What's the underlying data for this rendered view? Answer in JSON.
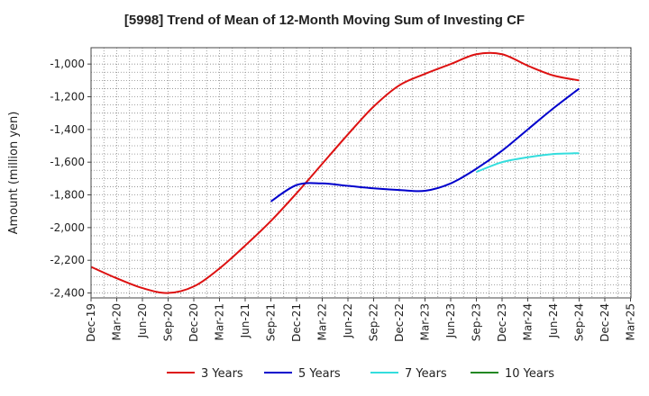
{
  "chart_data": {
    "type": "line",
    "title": "[5998]  Trend of Mean of 12-Month Moving Sum of Investing CF",
    "ylabel": "Amount (million yen)",
    "xlabel": "",
    "ylim": [
      -2430,
      -900
    ],
    "y_ticks": [
      -1000,
      -1200,
      -1400,
      -1600,
      -1800,
      -2000,
      -2200,
      -2400
    ],
    "y_tick_labels": [
      "-1,000",
      "-1,200",
      "-1,400",
      "-1,600",
      "-1,800",
      "-2,000",
      "-2,200",
      "-2,400"
    ],
    "categories": [
      "Dec-19",
      "Mar-20",
      "Jun-20",
      "Sep-20",
      "Dec-20",
      "Mar-21",
      "Jun-21",
      "Sep-21",
      "Dec-21",
      "Mar-22",
      "Jun-22",
      "Sep-22",
      "Dec-22",
      "Mar-23",
      "Jun-23",
      "Sep-23",
      "Dec-23",
      "Mar-24",
      "Jun-24",
      "Sep-24",
      "Dec-24",
      "Mar-25"
    ],
    "grid": true,
    "legend_position": "bottom",
    "series": [
      {
        "name": "3 Years",
        "color": "#dd1111",
        "values": [
          -2240,
          -2310,
          -2370,
          -2400,
          -2360,
          -2250,
          -2110,
          -1960,
          -1790,
          -1610,
          -1430,
          -1260,
          -1130,
          -1060,
          -1000,
          -940,
          -940,
          -1010,
          -1070,
          -1100,
          null,
          null
        ]
      },
      {
        "name": "5 Years",
        "color": "#0000cc",
        "values": [
          null,
          null,
          null,
          null,
          null,
          null,
          null,
          -1840,
          -1740,
          -1730,
          -1745,
          -1760,
          -1770,
          -1775,
          -1730,
          -1640,
          -1530,
          -1400,
          -1270,
          -1150,
          null,
          null
        ]
      },
      {
        "name": "7 Years",
        "color": "#33dddd",
        "values": [
          null,
          null,
          null,
          null,
          null,
          null,
          null,
          null,
          null,
          null,
          null,
          null,
          null,
          null,
          null,
          -1660,
          -1600,
          -1570,
          -1550,
          -1545,
          null,
          null
        ]
      },
      {
        "name": "10 Years",
        "color": "#228822",
        "values": [
          null,
          null,
          null,
          null,
          null,
          null,
          null,
          null,
          null,
          null,
          null,
          null,
          null,
          null,
          null,
          null,
          null,
          null,
          null,
          null,
          null,
          null
        ]
      }
    ]
  }
}
